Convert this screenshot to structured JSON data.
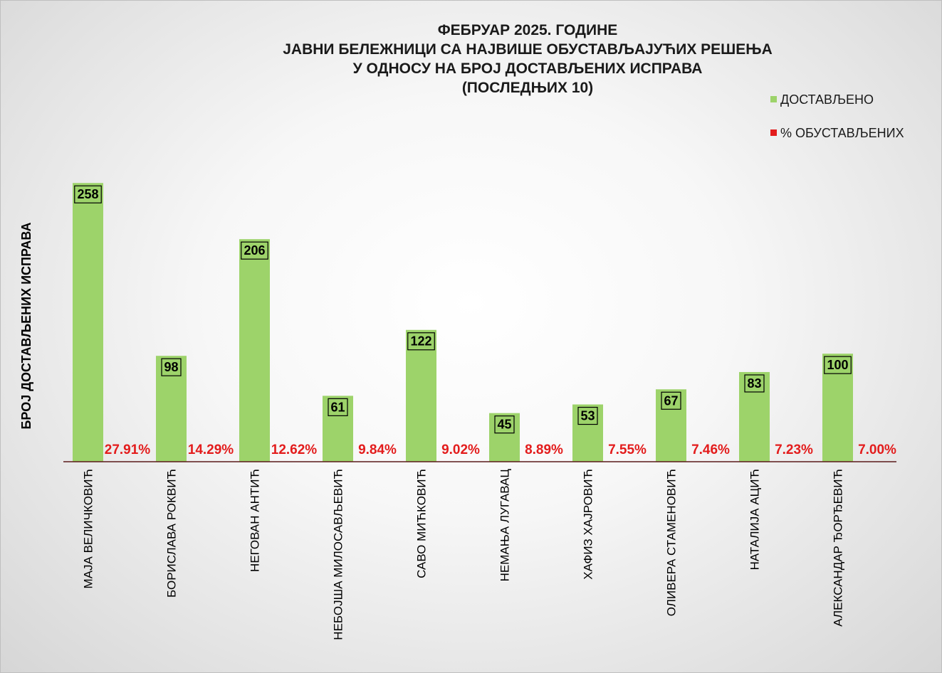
{
  "chart_data": {
    "type": "bar",
    "title_lines": [
      "ФЕБРУАР 2025. ГОДИНЕ",
      "ЈАВНИ БЕЛЕЖНИЦИ СА НАЈВИШЕ ОБУСТАВЉАЈУЋИХ РЕШЕЊА",
      "У ОДНОСУ НА БРОЈ ДОСТАВЉЕНИХ ИСПРАВА",
      "(ПОСЛЕДЊИХ 10)"
    ],
    "ylabel": "БРОЈ ДОСТАВЉЕНИХ ИСПРАВА",
    "xlabel": "",
    "ylim": [
      0,
      270
    ],
    "grid": false,
    "legend_position": "top-right",
    "categories": [
      "МАЈА ВЕЛИЧКОВИЋ",
      "БОРИСЛАВА РОКВИЋ",
      "НЕГОВАН АНТИЋ",
      "НЕБОЈША МИЛОСАВЉЕВИЋ",
      "САВО МИЋКОВИЋ",
      "НЕМАЊА ЛУГАВАЦ",
      "ХАФИЗ ХАЈРОВИЋ",
      "ОЛИВЕРА СТАМЕНОВИЋ",
      "НАТАЛИЈА АЦИЋ",
      "АЛЕКСАНДАР ЂОРЂЕВИЋ"
    ],
    "series": [
      {
        "name": "ДОСТАВЉЕНО",
        "color": "#9dd36a",
        "values": [
          258,
          98,
          206,
          61,
          122,
          45,
          53,
          67,
          83,
          100
        ],
        "labels": [
          "258",
          "98",
          "206",
          "61",
          "122",
          "45",
          "53",
          "67",
          "83",
          "100"
        ]
      },
      {
        "name": "% ОБУСТАВЉЕНИХ",
        "color": "#e31c1c",
        "values": [
          27.91,
          14.29,
          12.62,
          9.84,
          9.02,
          8.89,
          7.55,
          7.46,
          7.23,
          7.0
        ],
        "labels": [
          "27.91%",
          "14.29%",
          "12.62%",
          "9.84%",
          "9.02%",
          "8.89%",
          "7.55%",
          "7.46%",
          "7.23%",
          "7.00%"
        ]
      }
    ]
  }
}
